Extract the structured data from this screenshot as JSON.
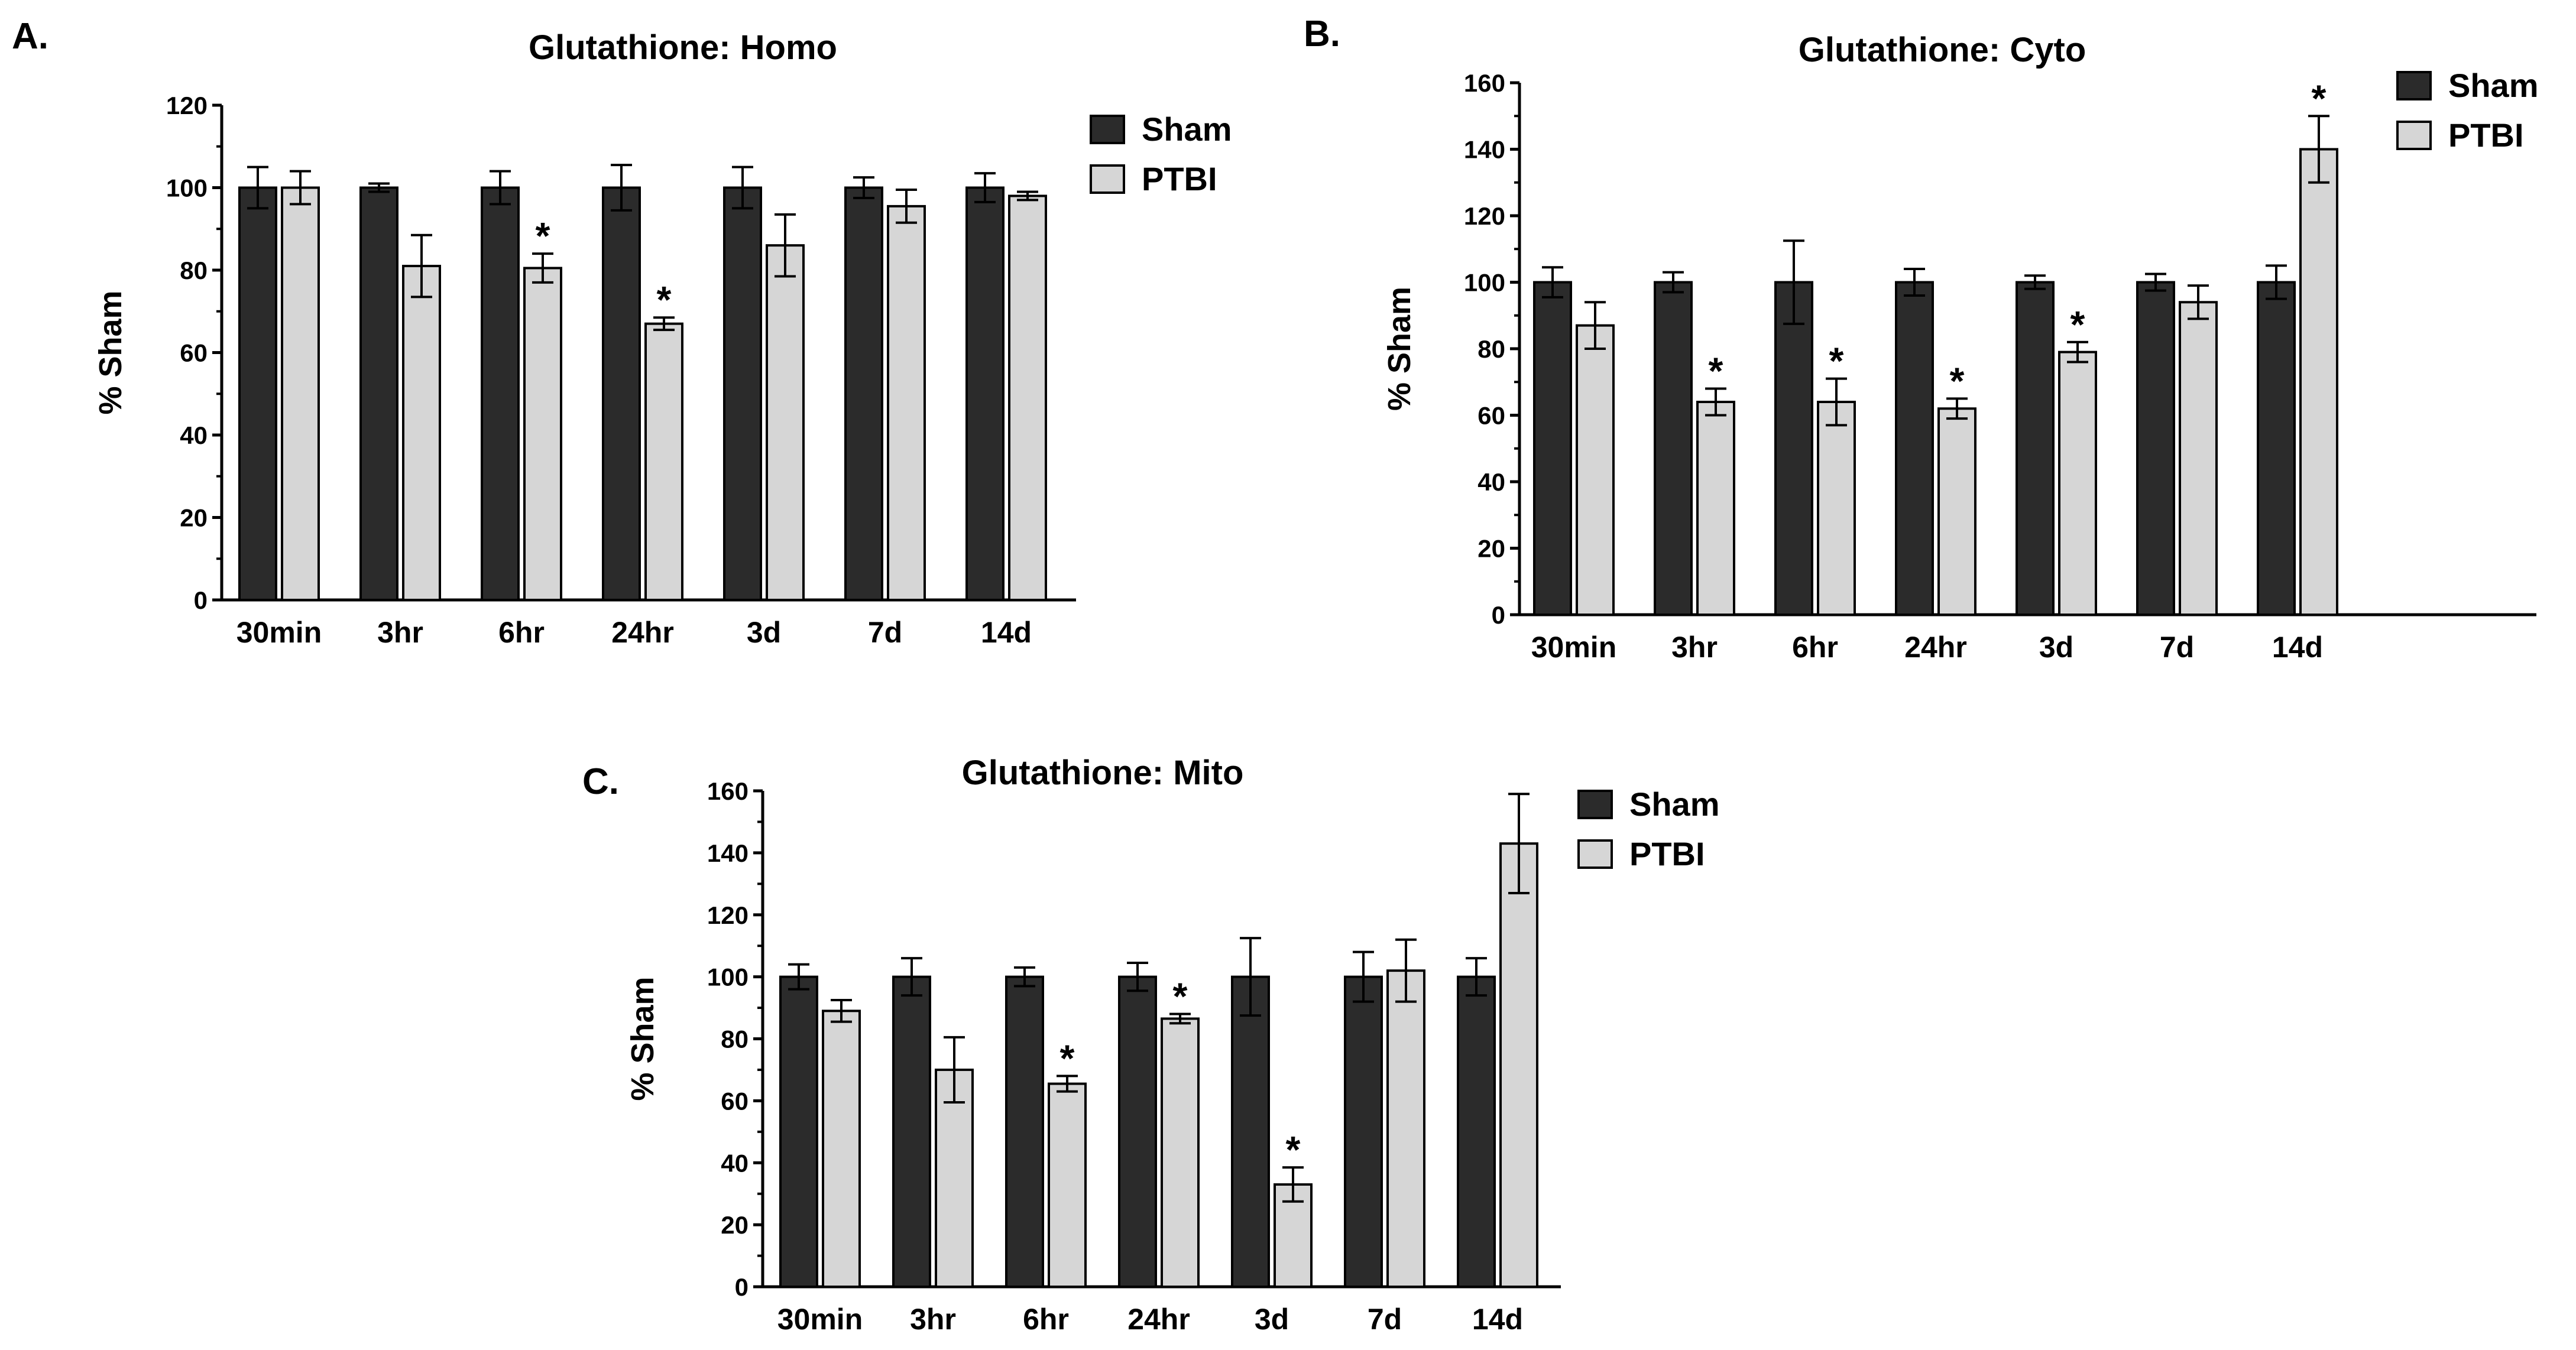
{
  "colors": {
    "sham": "#2b2b2b",
    "ptbi": "#d6d6d6",
    "axis": "#000000",
    "edge": "#000000"
  },
  "chart_data": [
    {
      "type": "bar",
      "panel": "A.",
      "title": "Glutathione: Homo",
      "xlabel": "",
      "ylabel": "% Sham",
      "ylim": [
        0,
        120
      ],
      "yticks": [
        "0",
        "20",
        "40",
        "60",
        "80",
        "100",
        "120"
      ],
      "categories": [
        "30min",
        "3hr",
        "6hr",
        "24hr",
        "3d",
        "7d",
        "14d"
      ],
      "legend": [
        "Sham",
        "PTBI"
      ],
      "legend_position": "top-right",
      "series": [
        {
          "name": "Sham",
          "values": [
            100,
            100,
            100,
            100,
            100,
            100,
            100
          ],
          "errors": [
            5,
            1,
            4,
            5.5,
            5,
            2.5,
            3.5
          ],
          "significant": [
            false,
            false,
            false,
            false,
            false,
            false,
            false
          ]
        },
        {
          "name": "PTBI",
          "values": [
            100,
            81,
            80.5,
            67,
            86,
            95.5,
            98
          ],
          "errors": [
            4,
            7.5,
            3.5,
            1.5,
            7.5,
            4,
            1
          ],
          "significant": [
            false,
            false,
            true,
            true,
            false,
            false,
            false
          ]
        }
      ],
      "significance_marker": "*"
    },
    {
      "type": "bar",
      "panel": "B.",
      "title": "Glutathione: Cyto",
      "xlabel": "",
      "ylabel": "% Sham",
      "ylim": [
        0,
        160
      ],
      "yticks": [
        "0",
        "20",
        "40",
        "60",
        "80",
        "100",
        "120",
        "140",
        "160"
      ],
      "categories": [
        "30min",
        "3hr",
        "6hr",
        "24hr",
        "3d",
        "7d",
        "14d"
      ],
      "legend": [
        "Sham",
        "PTBI"
      ],
      "legend_position": "top-right",
      "series": [
        {
          "name": "Sham",
          "values": [
            100,
            100,
            100,
            100,
            100,
            100,
            100
          ],
          "errors": [
            4.5,
            3,
            12.5,
            4,
            2,
            2.5,
            5
          ],
          "significant": [
            false,
            false,
            false,
            false,
            false,
            false,
            false
          ]
        },
        {
          "name": "PTBI",
          "values": [
            87,
            64,
            64,
            62,
            79,
            94,
            140
          ],
          "errors": [
            7,
            4,
            7,
            3,
            3,
            5,
            10
          ],
          "significant": [
            false,
            true,
            true,
            true,
            true,
            false,
            true
          ]
        }
      ],
      "significance_marker": "*"
    },
    {
      "type": "bar",
      "panel": "C.",
      "title": "Glutathione: Mito",
      "xlabel": "",
      "ylabel": "% Sham",
      "ylim": [
        0,
        160
      ],
      "yticks": [
        "0",
        "20",
        "40",
        "60",
        "80",
        "100",
        "120",
        "140",
        "160"
      ],
      "categories": [
        "30min",
        "3hr",
        "6hr",
        "24hr",
        "3d",
        "7d",
        "14d"
      ],
      "legend": [
        "Sham",
        "PTBI"
      ],
      "legend_position": "top-right",
      "series": [
        {
          "name": "Sham",
          "values": [
            100,
            100,
            100,
            100,
            100,
            100,
            100
          ],
          "errors": [
            4,
            6,
            3,
            4.5,
            12.5,
            8,
            6
          ],
          "significant": [
            false,
            false,
            false,
            false,
            false,
            false,
            false
          ]
        },
        {
          "name": "PTBI",
          "values": [
            89,
            70,
            65.5,
            86.5,
            33,
            102,
            143
          ],
          "errors": [
            3.5,
            10.5,
            2.5,
            1.5,
            5.5,
            10,
            16
          ],
          "significant": [
            false,
            false,
            true,
            true,
            true,
            false,
            false
          ]
        }
      ],
      "significance_marker": "*"
    }
  ]
}
